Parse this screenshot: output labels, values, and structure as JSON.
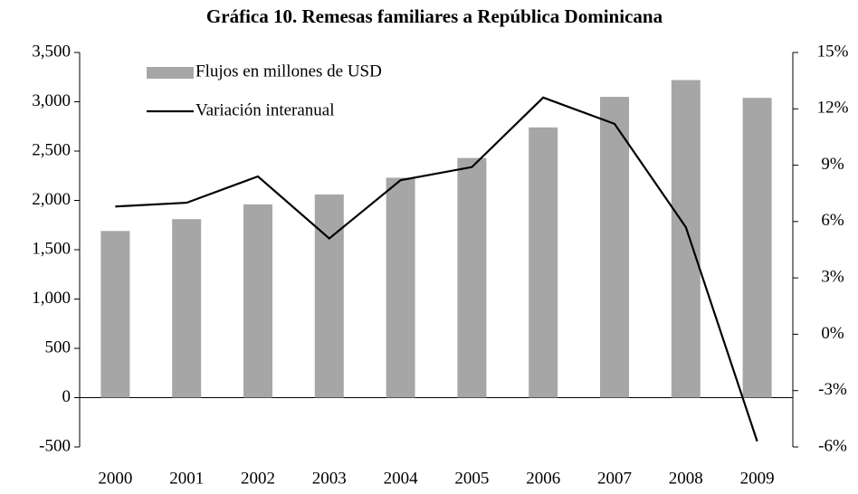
{
  "chart_data": {
    "type": "bar_line",
    "title": "Gráfica 10. Remesas familiares a República Dominicana",
    "categories": [
      "2000",
      "2001",
      "2002",
      "2003",
      "2004",
      "2005",
      "2006",
      "2007",
      "2008",
      "2009"
    ],
    "series": [
      {
        "name": "Flujos en millones de USD",
        "color": "#a6a6a6",
        "type": "bar",
        "values": [
          1690,
          1810,
          1960,
          2060,
          2230,
          2430,
          2740,
          3050,
          3220,
          3040
        ]
      },
      {
        "name": "Variación interanual",
        "color": "#000000",
        "type": "line",
        "axis": "y2",
        "values": [
          6.8,
          7.0,
          8.4,
          5.1,
          8.2,
          8.9,
          12.6,
          11.2,
          5.7,
          -5.7
        ]
      }
    ],
    "ylim": [
      -500,
      3500
    ],
    "yticks": [
      -500,
      0,
      500,
      {
        "value": 1000,
        "label": "1,000"
      },
      {
        "value": 1500,
        "label": "1,500"
      },
      {
        "value": 2000,
        "label": "2,000"
      },
      {
        "value": 2500,
        "label": "2,500"
      },
      {
        "value": 3000,
        "label": "3,000"
      },
      {
        "value": 3500,
        "label": "3,500"
      }
    ],
    "y2lim": [
      -6,
      15
    ],
    "y2ticks": [
      {
        "value": -6,
        "label": "-6%"
      },
      {
        "value": -3,
        "label": "-3%"
      },
      {
        "value": 0,
        "label": "0%"
      },
      {
        "value": 3,
        "label": "3%"
      },
      {
        "value": 6,
        "label": "6%"
      },
      {
        "value": 9,
        "label": "9%"
      },
      {
        "value": 12,
        "label": "12%"
      },
      {
        "value": 15,
        "label": "15%"
      }
    ],
    "legend": "upper left"
  }
}
